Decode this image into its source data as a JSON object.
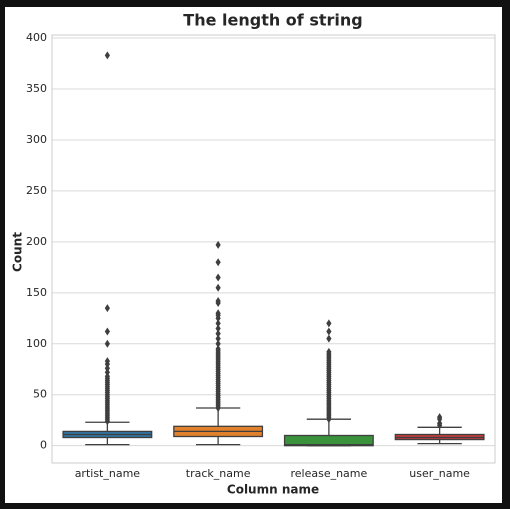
{
  "chart_data": {
    "type": "box",
    "title": "The length of string",
    "xlabel": "Column name",
    "ylabel": "Count",
    "ylim": [
      -17,
      403
    ],
    "yticks": [
      0,
      50,
      100,
      150,
      200,
      250,
      300,
      350,
      400
    ],
    "grid": true,
    "categories": [
      "artist_name",
      "track_name",
      "release_name",
      "user_name"
    ],
    "boxes": [
      {
        "color": "#3274a1",
        "whislo": 1,
        "q1": 8,
        "med": 11,
        "q3": 14,
        "whishi": 23,
        "fliers": [
          24,
          26,
          28,
          30,
          32,
          34,
          36,
          38,
          40,
          42,
          44,
          46,
          48,
          50,
          52,
          54,
          56,
          58,
          60,
          62,
          64,
          66,
          68,
          72,
          76,
          80,
          83,
          100,
          112,
          135,
          383
        ]
      },
      {
        "color": "#e1812c",
        "whislo": 1,
        "q1": 9,
        "med": 14,
        "q3": 19,
        "whishi": 37,
        "fliers": [
          37,
          39,
          41,
          43,
          45,
          47,
          49,
          51,
          53,
          55,
          57,
          59,
          61,
          63,
          65,
          67,
          69,
          71,
          73,
          75,
          77,
          79,
          81,
          83,
          85,
          87,
          89,
          91,
          93,
          95,
          100,
          105,
          110,
          115,
          120,
          125,
          128,
          130,
          140,
          142,
          155,
          165,
          180,
          197
        ]
      },
      {
        "color": "#3a923a",
        "whislo": 0,
        "q1": 0,
        "med": 1,
        "q3": 10,
        "whishi": 26,
        "fliers": [
          26,
          28,
          30,
          32,
          34,
          36,
          38,
          40,
          42,
          44,
          46,
          48,
          50,
          52,
          54,
          56,
          58,
          60,
          62,
          64,
          66,
          68,
          70,
          72,
          74,
          76,
          78,
          80,
          82,
          84,
          86,
          88,
          90,
          92,
          105,
          112,
          120
        ]
      },
      {
        "color": "#c03d3e",
        "whislo": 2,
        "q1": 6,
        "med": 8,
        "q3": 11,
        "whishi": 18,
        "fliers": [
          20,
          22,
          26,
          28
        ]
      }
    ]
  }
}
